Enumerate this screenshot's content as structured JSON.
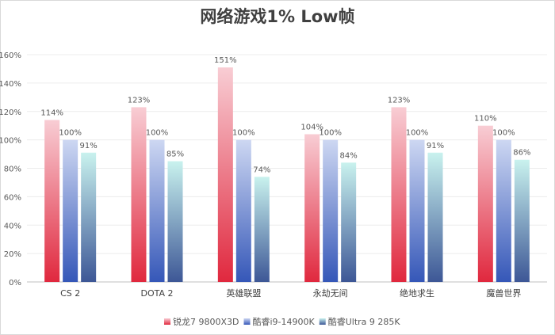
{
  "chart_data": {
    "type": "bar",
    "title": "网络游戏1% Low帧",
    "categories": [
      "CS 2",
      "DOTA 2",
      "英雄联盟",
      "永劫无间",
      "绝地求生",
      "魔兽世界"
    ],
    "series": [
      {
        "name": "锐龙7 9800X3D",
        "values": [
          114,
          123,
          151,
          104,
          123,
          110
        ],
        "labels": [
          "114%",
          "123%",
          "151%",
          "104%",
          "123%",
          "110%"
        ],
        "color_top": "#f8cdd4",
        "color_bottom": "#e0283e"
      },
      {
        "name": "酷睿i9-14900K",
        "values": [
          100,
          100,
          100,
          100,
          100,
          100
        ],
        "labels": [
          "100%",
          "100%",
          "100%",
          "100%",
          "100%",
          "100%"
        ],
        "color_top": "#cdd7f2",
        "color_bottom": "#3557b8"
      },
      {
        "name": "酷睿Ultra 9 285K",
        "values": [
          91,
          85,
          74,
          84,
          91,
          86
        ],
        "labels": [
          "91%",
          "85%",
          "74%",
          "84%",
          "91%",
          "86%"
        ],
        "color_top": "#c9f2ee",
        "color_bottom": "#3d5796"
      }
    ],
    "yticks": [
      "0%",
      "20%",
      "40%",
      "60%",
      "80%",
      "100%",
      "120%",
      "140%",
      "160%"
    ],
    "ylim": [
      0,
      160
    ],
    "xlabel": "",
    "ylabel": "",
    "grid": true,
    "legend": "bottom"
  }
}
